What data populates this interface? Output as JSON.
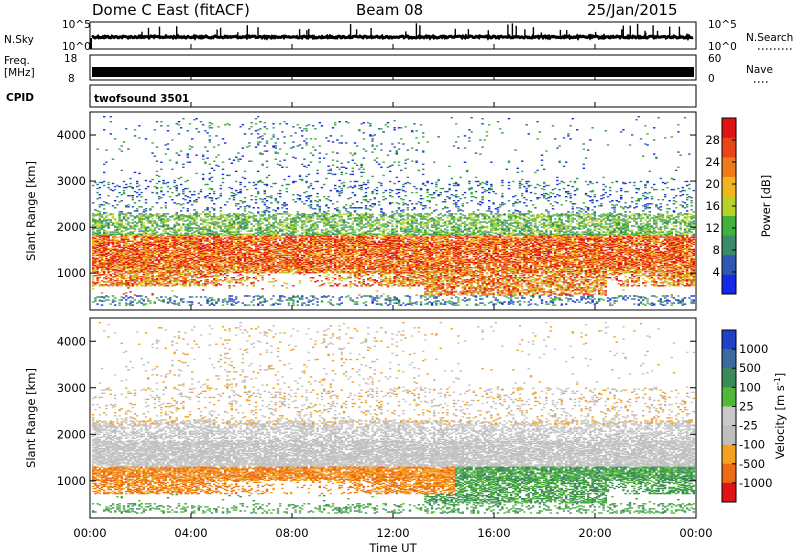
{
  "header": {
    "station": "Dome C East (fitACF)",
    "beam": "Beam 08",
    "date": "25/Jan/2015"
  },
  "nsky_panel": {
    "left_label": "N.Sky",
    "right_label": "N.Search",
    "left_ticks": [
      "10^5",
      "10^0"
    ],
    "right_ticks": [
      "10^5",
      "10^0"
    ]
  },
  "freq_panel": {
    "left_label_line1": "Freq.",
    "left_label_line2": "[MHz]",
    "right_label": "Nave",
    "left_ticks": [
      "18",
      "8"
    ],
    "right_ticks": [
      "60",
      "0"
    ]
  },
  "cpid": {
    "label": "CPID",
    "value": "twofsound 3501"
  },
  "time_axis": {
    "label": "Time UT",
    "ticks": [
      "00:00",
      "04:00",
      "08:00",
      "12:00",
      "16:00",
      "20:00",
      "00:00"
    ]
  },
  "colors": {
    "power": [
      "#1428e6",
      "#2f58b0",
      "#3b8a6a",
      "#41b23a",
      "#b8d22a",
      "#f2b51e",
      "#ef7a1a",
      "#e8461a",
      "#e01414"
    ],
    "velocity": [
      "#2040c8",
      "#3a6aa0",
      "#3c8a5c",
      "#52b83a",
      "#c8c8c8",
      "#bebebe",
      "#f2a21e",
      "#ee6a14",
      "#e01414"
    ]
  },
  "chart_data": [
    {
      "type": "heatmap",
      "name": "power",
      "ylabel": "Slant Range [km]",
      "yticks": [
        1000,
        2000,
        3000,
        4000
      ],
      "ylim": [
        200,
        4500
      ],
      "xlim": [
        0,
        24
      ],
      "colorbar_label": "Power [dB]",
      "colorbar_ticks": [
        4,
        8,
        12,
        16,
        20,
        24,
        28
      ],
      "colorbar_range": [
        0,
        32
      ]
    },
    {
      "type": "heatmap",
      "name": "velocity",
      "ylabel": "Slant Range [km]",
      "yticks": [
        1000,
        2000,
        3000,
        4000
      ],
      "ylim": [
        200,
        4500
      ],
      "xlim": [
        0,
        24
      ],
      "colorbar_label": "Velocity [m s^-1]",
      "colorbar_ticks": [
        "1000",
        "500",
        "100",
        "25",
        "-25",
        "-100",
        "-500",
        "-1000"
      ]
    }
  ]
}
